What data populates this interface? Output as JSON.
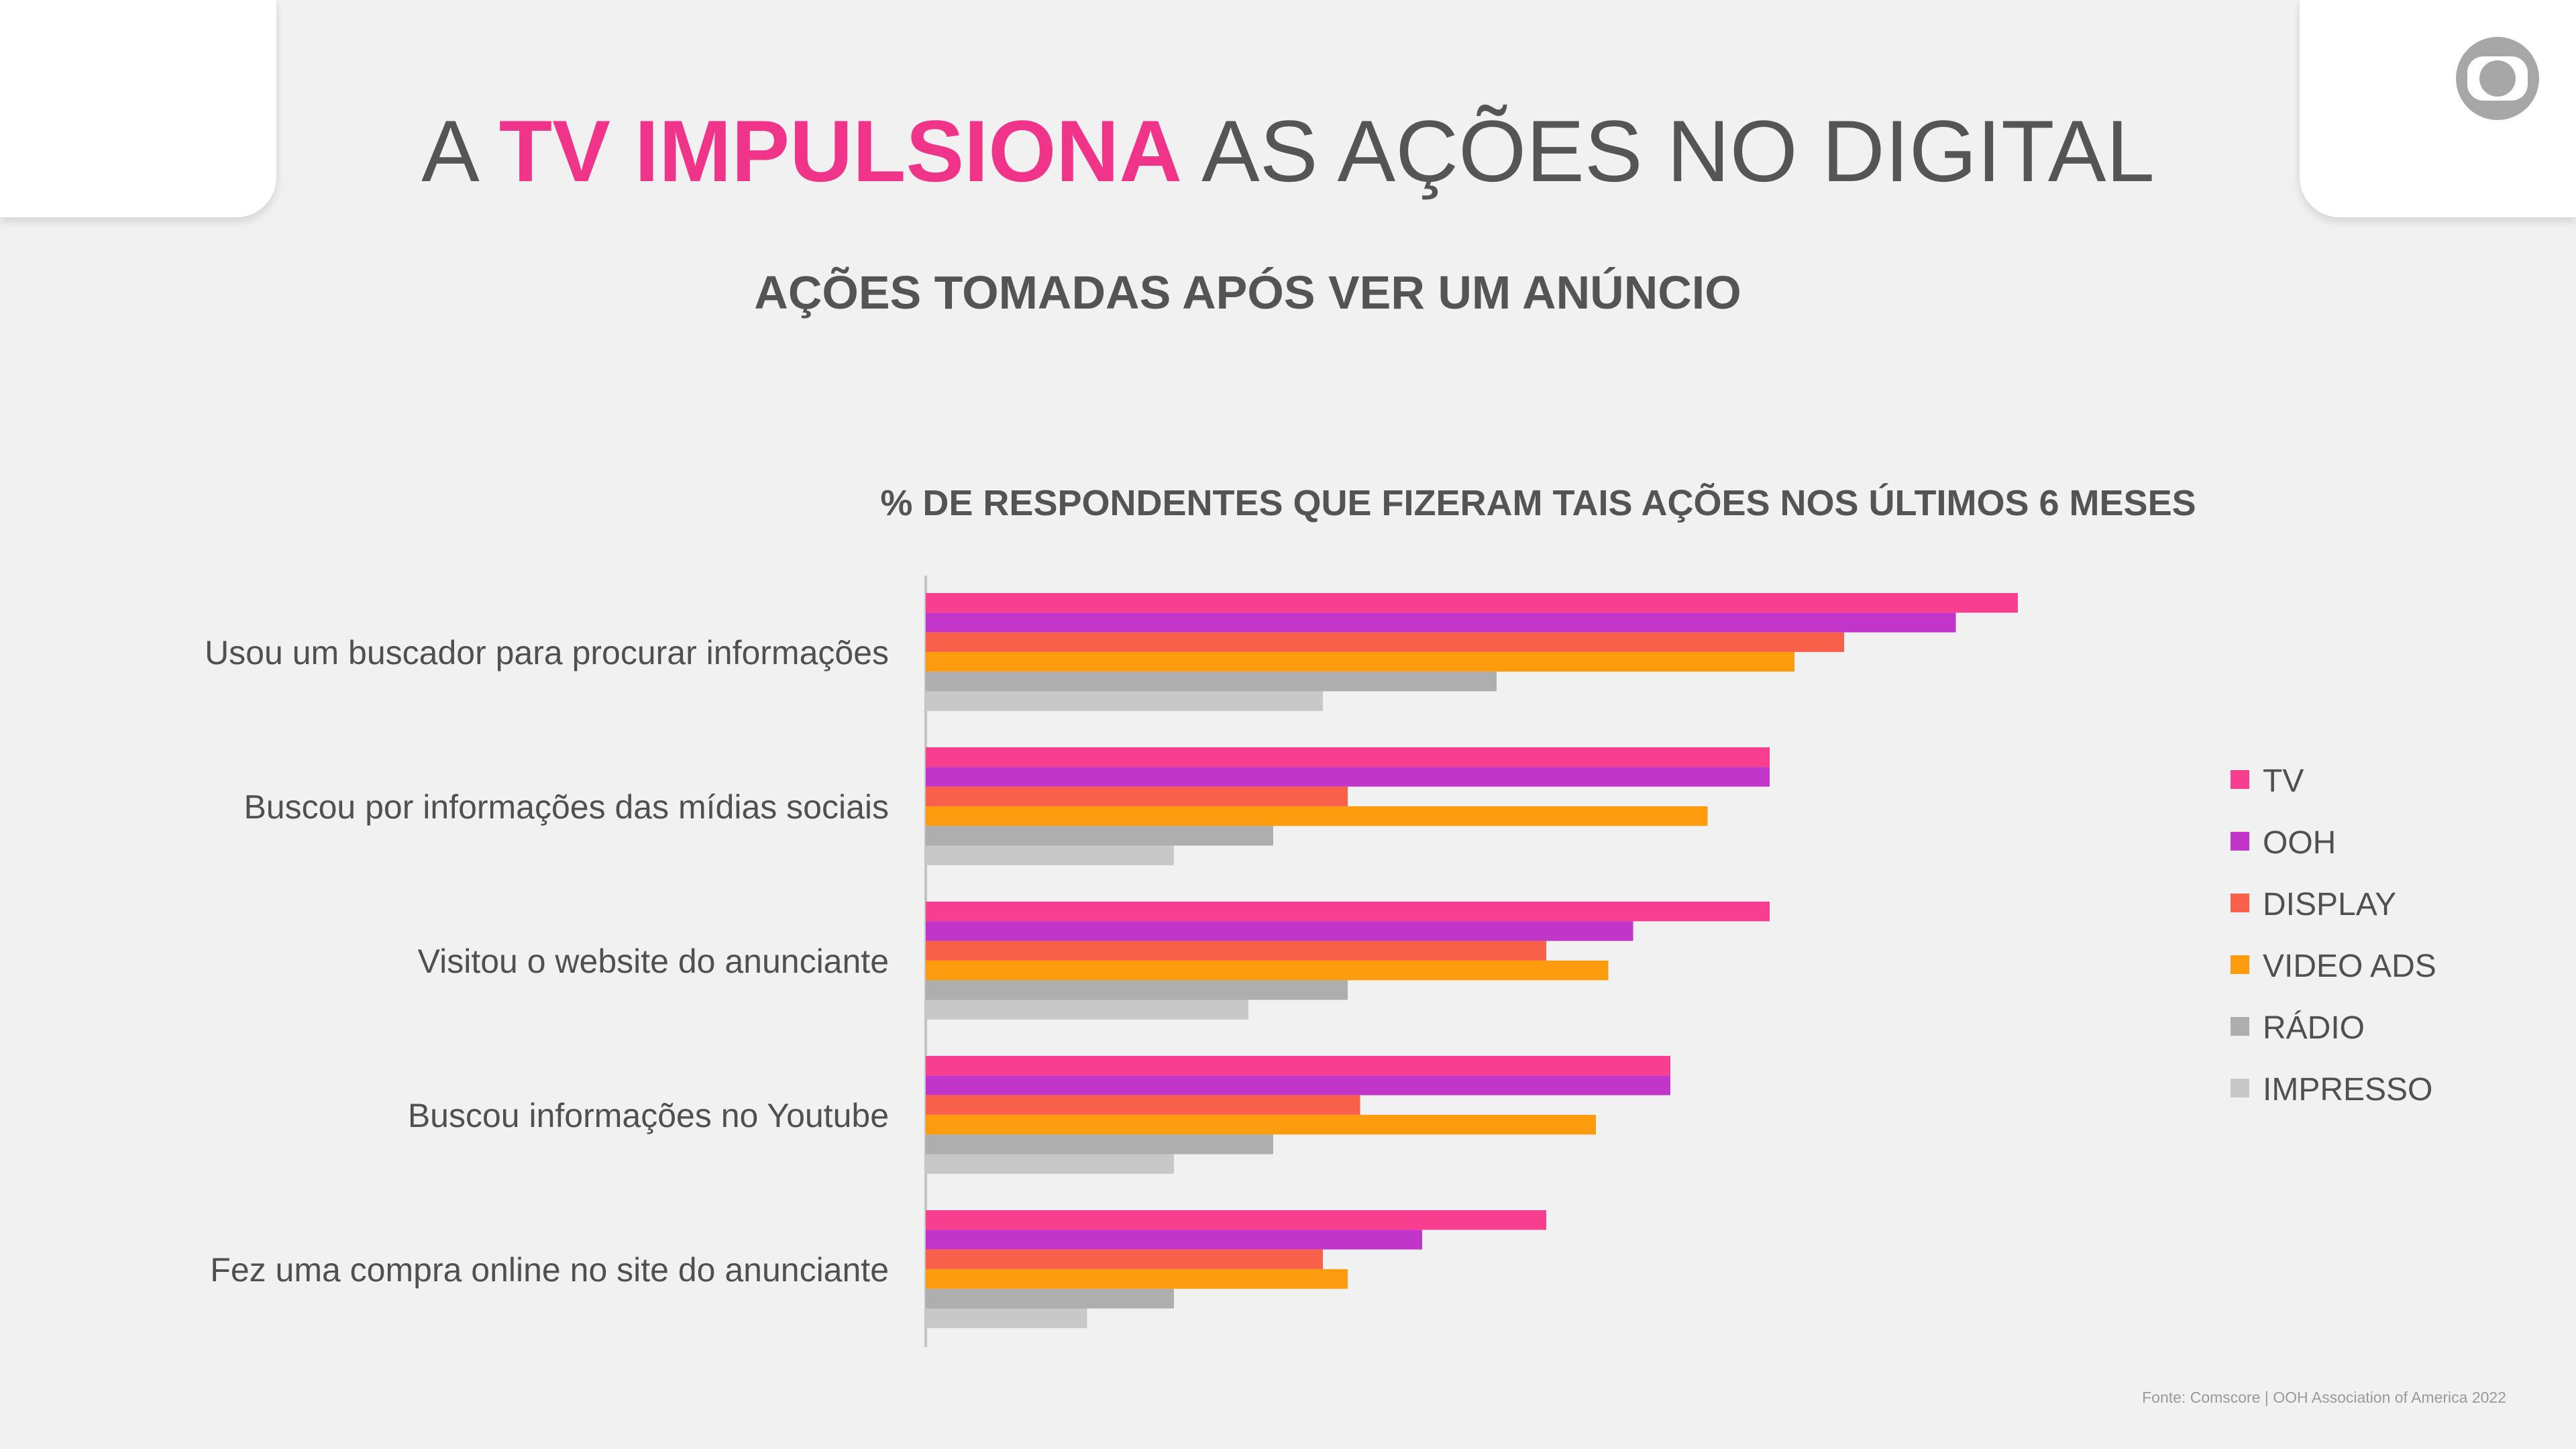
{
  "header": {
    "title_prefix": "A ",
    "title_highlight": "TV IMPULSIONA",
    "title_suffix": " AS AÇÕES NO DIGITAL",
    "subtitle": "AÇÕES TOMADAS APÓS VER UM ANÚNCIO"
  },
  "logo_icon": "globo-logo-icon",
  "colors": {
    "accent": "#f0348a",
    "background": "#f1f1f1",
    "text": "#555555"
  },
  "chart_data": {
    "type": "bar",
    "orientation": "horizontal",
    "title": "% DE RESPONDENTES QUE FIZERAM TAIS AÇÕES NOS ÚLTIMOS 6 MESES",
    "categories": [
      "Usou um buscador para procurar informações",
      "Buscou por informações das mídias sociais",
      "Visitou o website do anunciante",
      "Buscou informações no Youtube",
      "Fez uma compra online no site do anunciante"
    ],
    "series": [
      {
        "name": "TV",
        "color": "#f83e8e",
        "values": [
          44,
          34,
          34,
          30,
          25
        ]
      },
      {
        "name": "OOH",
        "color": "#c136c9",
        "values": [
          41.5,
          34,
          28.5,
          30,
          20
        ]
      },
      {
        "name": "DISPLAY",
        "color": "#f9604a",
        "values": [
          37,
          17,
          25,
          17.5,
          16
        ]
      },
      {
        "name": "VIDEO ADS",
        "color": "#fd9c0f",
        "values": [
          35,
          31.5,
          27.5,
          27,
          17
        ]
      },
      {
        "name": "RÁDIO",
        "color": "#aeaeae",
        "values": [
          23,
          14,
          17,
          14,
          10
        ]
      },
      {
        "name": "IMPRESSO",
        "color": "#c8c8c8",
        "values": [
          16,
          10,
          13,
          10,
          6.5
        ]
      }
    ],
    "xlim": [
      0,
      50
    ],
    "grid": false,
    "legend": "right"
  },
  "footer": {
    "source": "Fonte:  Comscore | OOH Association of America 2022"
  }
}
